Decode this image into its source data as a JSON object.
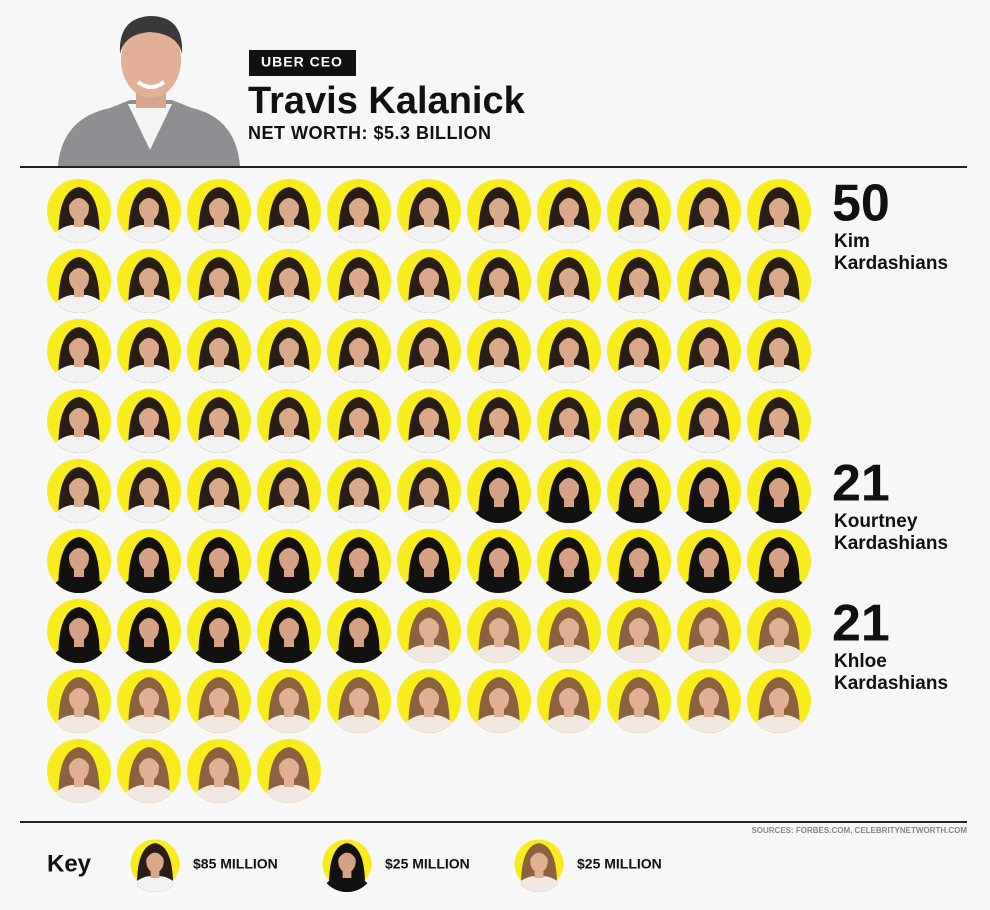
{
  "chart_data": {
    "type": "pictogram",
    "badge": "UBER CEO",
    "title": "Travis Kalanick",
    "subtitle": "NET WORTH: $5.3 BILLION",
    "source": "SOURCES: FORBES.COM, CELEBRITYNETWORTH.COM",
    "key_title": "Key",
    "columns": 11,
    "color": "#f9ec1c",
    "series": [
      {
        "name": "Kim Kardashians",
        "values": 50,
        "key_label": "$85 MILLION"
      },
      {
        "name": "Kourtney Kardashians",
        "values": 21,
        "key_label": "$25 MILLION"
      },
      {
        "name": "Khloe Kardashians",
        "values": 21,
        "key_label": "$25 MILLION"
      }
    ]
  }
}
